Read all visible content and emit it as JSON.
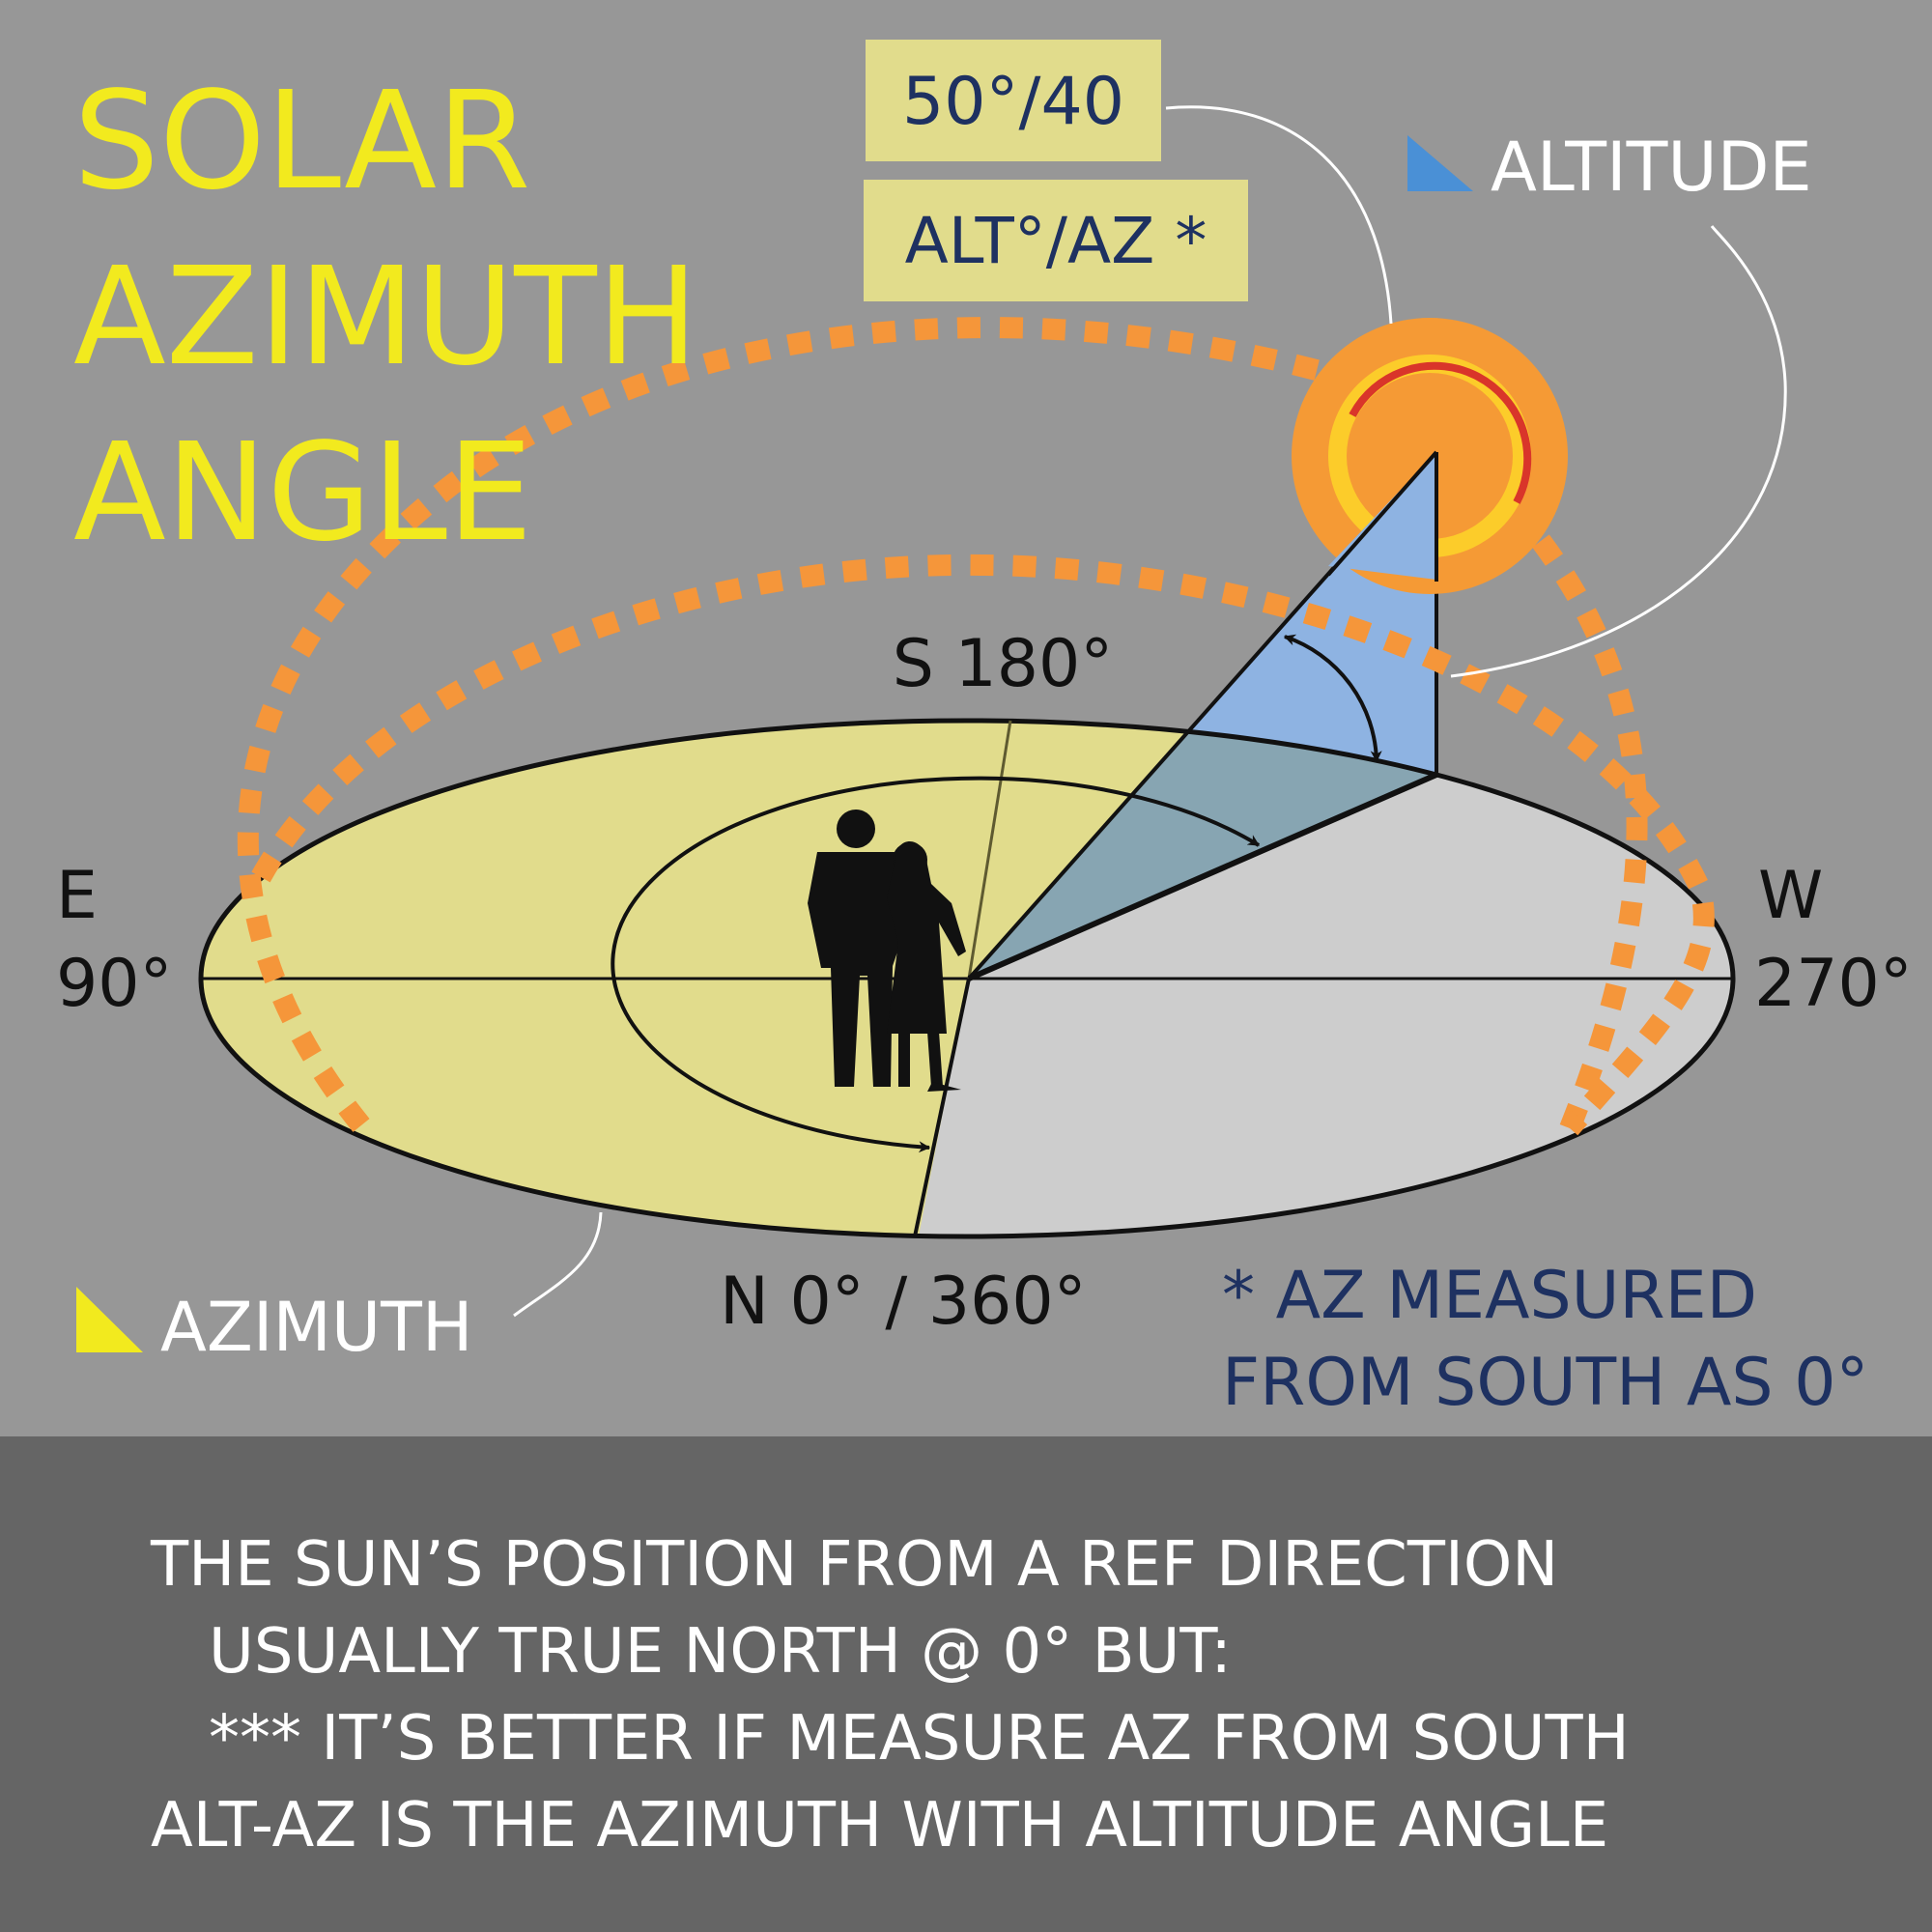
{
  "title": {
    "line1": "SOLAR",
    "line2": "AZIMUTH",
    "line3": "ANGLE"
  },
  "reading": {
    "value": "50°/40",
    "format": "ALT°/AZ *"
  },
  "legend": {
    "altitude": "ALTITUDE",
    "azimuth": "AZIMUTH"
  },
  "compass": {
    "south": "S 180°",
    "east_letter": "E",
    "east_deg": "90°",
    "west_letter": "W",
    "west_deg": "270°",
    "north": "N 0° / 360°"
  },
  "note": {
    "line1": "* AZ MEASURED",
    "line2": "FROM SOUTH AS 0°"
  },
  "footer": {
    "line1": "THE SUN’S POSITION FROM A REF DIRECTION",
    "line2": "USUALLY TRUE NORTH @ 0° BUT:",
    "line3": "*** IT’S BETTER IF MEASURE AZ FROM SOUTH",
    "line4": "ALT-AZ IS THE AZIMUTH WITH ALTITUDE ANGLE"
  },
  "icons": {
    "sun": "sun-icon",
    "people": "people-silhouette-icon",
    "altitude_marker": "altitude-triangle-icon",
    "azimuth_marker": "azimuth-triangle-icon"
  },
  "colors": {
    "background": "#979797",
    "footer_bg": "#656565",
    "title_yellow": "#f2ea1e",
    "ground_yellow": "#e1dc8c",
    "ground_gray": "#cdcdcd",
    "sky_blue": "#8eb3e2",
    "altitude_marker": "#4a90d6",
    "sun_orange": "#f59a35",
    "sun_ring_yellow": "#fccc2a",
    "sun_ring_red": "#d9352a",
    "label_box": "#e1dc8c",
    "navy_text": "#1e3161"
  }
}
